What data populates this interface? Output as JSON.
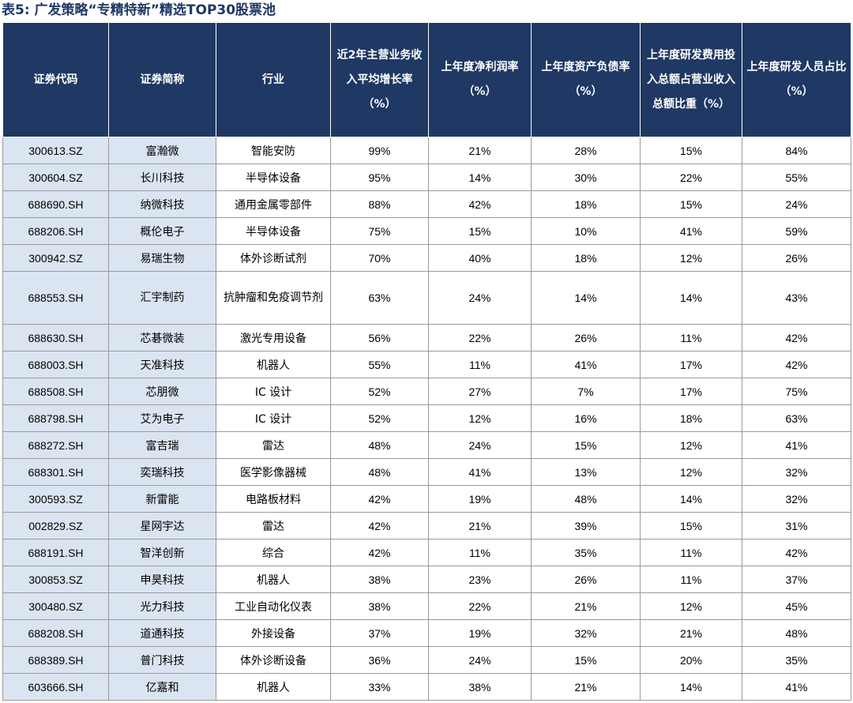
{
  "title": "表5: 广发策略“专精特新”精选TOP30股票池",
  "table": {
    "headers": [
      "证券代码",
      "证券简称",
      "行业",
      "近2年主营业务收入平均增长率（%）",
      "上年度净利润率（%）",
      "上年度资产负债率（%）",
      "上年度研发费用投入总额占营业收入总额比重（%）",
      "上年度研发人员占比（%）"
    ],
    "rows": [
      [
        "300613.SZ",
        "富瀚微",
        "智能安防",
        "99%",
        "21%",
        "28%",
        "15%",
        "84%"
      ],
      [
        "300604.SZ",
        "长川科技",
        "半导体设备",
        "95%",
        "14%",
        "30%",
        "22%",
        "55%"
      ],
      [
        "688690.SH",
        "纳微科技",
        "通用金属零部件",
        "88%",
        "42%",
        "18%",
        "15%",
        "24%"
      ],
      [
        "688206.SH",
        "概伦电子",
        "半导体设备",
        "75%",
        "15%",
        "10%",
        "41%",
        "59%"
      ],
      [
        "300942.SZ",
        "易瑞生物",
        "体外诊断试剂",
        "70%",
        "40%",
        "18%",
        "12%",
        "26%"
      ],
      [
        "688553.SH",
        "汇宇制药",
        "抗肿瘤和免疫调节剂",
        "63%",
        "24%",
        "14%",
        "14%",
        "43%"
      ],
      [
        "688630.SH",
        "芯碁微装",
        "激光专用设备",
        "56%",
        "22%",
        "26%",
        "11%",
        "42%"
      ],
      [
        "688003.SH",
        "天准科技",
        "机器人",
        "55%",
        "11%",
        "41%",
        "17%",
        "42%"
      ],
      [
        "688508.SH",
        "芯朋微",
        "IC 设计",
        "52%",
        "27%",
        "7%",
        "17%",
        "75%"
      ],
      [
        "688798.SH",
        "艾为电子",
        "IC 设计",
        "52%",
        "12%",
        "16%",
        "18%",
        "63%"
      ],
      [
        "688272.SH",
        "富吉瑞",
        "雷达",
        "48%",
        "24%",
        "15%",
        "12%",
        "41%"
      ],
      [
        "688301.SH",
        "奕瑞科技",
        "医学影像器械",
        "48%",
        "41%",
        "13%",
        "12%",
        "32%"
      ],
      [
        "300593.SZ",
        "新雷能",
        "电路板材料",
        "42%",
        "19%",
        "48%",
        "14%",
        "32%"
      ],
      [
        "002829.SZ",
        "星网宇达",
        "雷达",
        "42%",
        "21%",
        "39%",
        "15%",
        "31%"
      ],
      [
        "688191.SH",
        "智洋创新",
        "综合",
        "42%",
        "11%",
        "35%",
        "11%",
        "42%"
      ],
      [
        "300853.SZ",
        "申昊科技",
        "机器人",
        "38%",
        "23%",
        "26%",
        "11%",
        "37%"
      ],
      [
        "300480.SZ",
        "光力科技",
        "工业自动化仪表",
        "38%",
        "22%",
        "21%",
        "12%",
        "45%"
      ],
      [
        "688208.SH",
        "道通科技",
        "外接设备",
        "37%",
        "19%",
        "32%",
        "21%",
        "48%"
      ],
      [
        "688389.SH",
        "普门科技",
        "体外诊断设备",
        "36%",
        "24%",
        "15%",
        "20%",
        "35%"
      ],
      [
        "603666.SH",
        "亿嘉和",
        "机器人",
        "33%",
        "38%",
        "21%",
        "14%",
        "41%"
      ]
    ]
  }
}
